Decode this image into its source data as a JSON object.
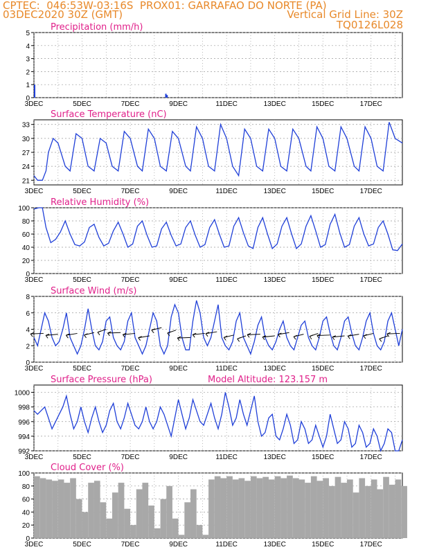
{
  "header": {
    "line1": "CPTEC:  046:53W-03:16S  PROX01: GARRAFAO DO NORTE (PA)",
    "line2_left": "03DEC2020 30Z (GMT)",
    "line2_right": "Vertical Grid Line: 30Z",
    "line3_right": "TQ0126L028"
  },
  "colors": {
    "title": "#e0208a",
    "header": "#e8892a",
    "line": "#1f3fd8",
    "bar": "#a8a8a8"
  },
  "x_axis": {
    "labels": [
      "3DEC",
      "5DEC",
      "7DEC",
      "9DEC",
      "11DEC",
      "13DEC",
      "15DEC",
      "17DEC"
    ],
    "day_range": [
      0,
      15.3
    ]
  },
  "chart_data": [
    {
      "type": "bar",
      "title": "Precipitation (mm/h)",
      "ylim": [
        0,
        5
      ],
      "yticks": [
        0,
        1,
        2,
        3,
        4,
        5
      ],
      "x_days": [
        0.0,
        5.45,
        5.5
      ],
      "values": [
        1.0,
        0.3,
        0.2
      ]
    },
    {
      "type": "line",
      "title": "Surface Temperature (nC)",
      "ylim": [
        20,
        34
      ],
      "yticks": [
        21,
        24,
        27,
        30,
        33
      ],
      "x_days": [
        0,
        0.15,
        0.35,
        0.5,
        0.6,
        0.8,
        1.0,
        1.3,
        1.5,
        1.75,
        2.0,
        2.25,
        2.5,
        2.75,
        3.0,
        3.25,
        3.5,
        3.75,
        4.0,
        4.3,
        4.5,
        4.75,
        5.0,
        5.25,
        5.5,
        5.75,
        6.0,
        6.3,
        6.5,
        6.75,
        7.0,
        7.25,
        7.5,
        7.75,
        8.0,
        8.25,
        8.5,
        8.75,
        9.0,
        9.25,
        9.5,
        9.75,
        10.0,
        10.25,
        10.5,
        10.75,
        11.0,
        11.3,
        11.5,
        11.75,
        12.0,
        12.25,
        12.5,
        12.75,
        13.0,
        13.3,
        13.5,
        13.75,
        14.0,
        14.25,
        14.5,
        14.75,
        15.0,
        15.3
      ],
      "values": [
        22,
        21,
        21,
        23,
        27,
        30,
        29,
        24,
        23,
        31,
        30,
        24,
        23,
        30,
        29,
        24,
        23,
        31.5,
        30,
        24,
        23,
        32,
        30,
        24,
        23,
        31.5,
        30,
        24,
        23,
        32.5,
        30,
        24,
        23,
        33,
        30,
        24,
        22,
        32,
        30,
        24,
        23,
        32,
        30,
        24,
        23,
        32,
        30,
        24,
        23,
        32.5,
        30,
        24,
        23,
        32.5,
        30,
        24,
        23,
        32.5,
        30,
        24,
        23,
        33.5,
        30,
        29
      ]
    },
    {
      "type": "line",
      "title": "Relative Humidity (%)",
      "ylim": [
        0,
        100
      ],
      "yticks": [
        0,
        20,
        40,
        60,
        80,
        100
      ],
      "x_days": [
        0,
        0.2,
        0.35,
        0.5,
        0.7,
        0.9,
        1.1,
        1.3,
        1.5,
        1.7,
        1.9,
        2.1,
        2.3,
        2.5,
        2.7,
        2.9,
        3.1,
        3.3,
        3.5,
        3.7,
        3.9,
        4.1,
        4.3,
        4.5,
        4.7,
        4.9,
        5.1,
        5.3,
        5.5,
        5.7,
        5.9,
        6.1,
        6.3,
        6.5,
        6.7,
        6.9,
        7.1,
        7.3,
        7.5,
        7.7,
        7.9,
        8.1,
        8.3,
        8.5,
        8.7,
        8.9,
        9.1,
        9.3,
        9.5,
        9.7,
        9.9,
        10.1,
        10.3,
        10.5,
        10.7,
        10.9,
        11.1,
        11.3,
        11.5,
        11.7,
        11.9,
        12.1,
        12.3,
        12.5,
        12.7,
        12.9,
        13.1,
        13.3,
        13.5,
        13.7,
        13.9,
        14.1,
        14.3,
        14.5,
        14.7,
        14.9,
        15.1,
        15.3
      ],
      "values": [
        98,
        100,
        100,
        70,
        47,
        52,
        63,
        80,
        60,
        44,
        42,
        48,
        70,
        75,
        55,
        42,
        46,
        65,
        78,
        60,
        40,
        45,
        72,
        80,
        58,
        40,
        42,
        68,
        78,
        58,
        42,
        45,
        70,
        80,
        58,
        40,
        44,
        70,
        82,
        60,
        40,
        42,
        72,
        85,
        62,
        42,
        38,
        70,
        85,
        60,
        38,
        45,
        72,
        85,
        60,
        38,
        45,
        72,
        88,
        65,
        40,
        44,
        75,
        90,
        62,
        40,
        44,
        72,
        85,
        60,
        42,
        45,
        70,
        80,
        60,
        36,
        35,
        45
      ]
    },
    {
      "type": "line",
      "title": "Surface Wind (m/s)",
      "ylim": [
        0,
        8
      ],
      "yticks": [
        0,
        2,
        4,
        6,
        8
      ],
      "x_days": [
        0,
        0.15,
        0.3,
        0.45,
        0.6,
        0.75,
        0.9,
        1.05,
        1.2,
        1.35,
        1.5,
        1.65,
        1.8,
        1.95,
        2.1,
        2.25,
        2.4,
        2.55,
        2.7,
        2.85,
        3.0,
        3.15,
        3.3,
        3.45,
        3.6,
        3.75,
        3.9,
        4.05,
        4.2,
        4.35,
        4.5,
        4.65,
        4.8,
        4.95,
        5.1,
        5.25,
        5.4,
        5.55,
        5.7,
        5.85,
        6.0,
        6.15,
        6.3,
        6.45,
        6.6,
        6.75,
        6.9,
        7.05,
        7.2,
        7.35,
        7.5,
        7.65,
        7.8,
        7.95,
        8.1,
        8.25,
        8.4,
        8.55,
        8.7,
        8.85,
        9.0,
        9.15,
        9.3,
        9.45,
        9.6,
        9.75,
        9.9,
        10.05,
        10.2,
        10.35,
        10.5,
        10.65,
        10.8,
        10.95,
        11.1,
        11.25,
        11.4,
        11.55,
        11.7,
        11.85,
        12.0,
        12.15,
        12.3,
        12.45,
        12.6,
        12.75,
        12.9,
        13.05,
        13.2,
        13.35,
        13.5,
        13.65,
        13.8,
        13.95,
        14.1,
        14.25,
        14.4,
        14.55,
        14.7,
        14.85,
        15.0,
        15.15,
        15.3
      ],
      "values": [
        3,
        2,
        4,
        6,
        5,
        3,
        2,
        2.5,
        4,
        6,
        3,
        2,
        1,
        2,
        4,
        6.5,
        4,
        2,
        1.5,
        2.5,
        5,
        5.5,
        3,
        2,
        1.5,
        2.5,
        5,
        6,
        3,
        2,
        1,
        2,
        4,
        6,
        5,
        2,
        1,
        2,
        5.5,
        7,
        6,
        3,
        1.5,
        1.5,
        5,
        7.5,
        6,
        3,
        2,
        3,
        5,
        7,
        3,
        2,
        1.5,
        2.5,
        5,
        6,
        3,
        2,
        1,
        2.5,
        4.5,
        5.5,
        3,
        2,
        1.5,
        2.5,
        4,
        5,
        3,
        2,
        1.5,
        3,
        4.5,
        5,
        3,
        2,
        1.5,
        3,
        5,
        5.5,
        3.5,
        2,
        1.5,
        3,
        5,
        5.5,
        3.5,
        2,
        1.5,
        3,
        5,
        6,
        3.5,
        2,
        1.5,
        2.5,
        5,
        6,
        4,
        2,
        4
      ],
      "arrows_x_days": [
        0.4,
        1.0,
        1.8,
        2.5,
        3.0,
        3.6,
        4.2,
        4.8,
        5.3,
        5.9,
        6.5,
        7.1,
        7.6,
        8.3,
        8.8,
        9.4,
        10.0,
        10.6,
        11.2,
        11.8,
        12.3,
        12.9,
        13.5,
        14.1,
        14.7,
        15.2
      ],
      "arrows_speed": [
        3.5,
        3.4,
        3.5,
        3.6,
        4.0,
        3.6,
        3.5,
        3.2,
        4.2,
        3.9,
        3.0,
        3.5,
        3.7,
        3.3,
        3.2,
        3.4,
        3.2,
        3.6,
        3.4,
        3.5,
        3.3,
        3.2,
        3.4,
        3.5,
        3.2,
        3.5
      ]
    },
    {
      "type": "line",
      "title": "Surface Pressure (hPa)",
      "annotation": "Model Altitude: 123.157 m",
      "ylim": [
        992,
        1001
      ],
      "yticks": [
        992,
        994,
        996,
        998,
        1000
      ],
      "x_days": [
        0,
        0.15,
        0.3,
        0.45,
        0.6,
        0.75,
        0.9,
        1.05,
        1.2,
        1.35,
        1.5,
        1.65,
        1.8,
        1.95,
        2.1,
        2.25,
        2.4,
        2.55,
        2.7,
        2.85,
        3.0,
        3.15,
        3.3,
        3.45,
        3.6,
        3.75,
        3.9,
        4.05,
        4.2,
        4.35,
        4.5,
        4.65,
        4.8,
        4.95,
        5.1,
        5.25,
        5.4,
        5.55,
        5.7,
        5.85,
        6.0,
        6.15,
        6.3,
        6.45,
        6.6,
        6.75,
        6.9,
        7.05,
        7.2,
        7.35,
        7.5,
        7.65,
        7.8,
        7.95,
        8.1,
        8.25,
        8.4,
        8.55,
        8.7,
        8.85,
        9.0,
        9.15,
        9.3,
        9.45,
        9.6,
        9.75,
        9.9,
        10.05,
        10.2,
        10.35,
        10.5,
        10.65,
        10.8,
        10.95,
        11.1,
        11.25,
        11.4,
        11.55,
        11.7,
        11.85,
        12.0,
        12.15,
        12.3,
        12.45,
        12.6,
        12.75,
        12.9,
        13.05,
        13.2,
        13.35,
        13.5,
        13.65,
        13.8,
        13.95,
        14.1,
        14.25,
        14.4,
        14.55,
        14.7,
        14.85,
        15.0,
        15.15,
        15.3
      ],
      "values": [
        997.5,
        997,
        997.5,
        998,
        996.5,
        995,
        996,
        997,
        998,
        999.5,
        997,
        995,
        996,
        998,
        996,
        994.5,
        996.5,
        998,
        996,
        994.5,
        995.5,
        997.5,
        998.5,
        996,
        995,
        996.5,
        998.5,
        997,
        995.5,
        995,
        996,
        998,
        996,
        995,
        996,
        998,
        997,
        995.5,
        994,
        996.5,
        999,
        997,
        995,
        996.5,
        999,
        997.5,
        996,
        995.5,
        997,
        998.5,
        996.5,
        995,
        997,
        1000,
        998,
        995.5,
        996.5,
        999,
        997,
        995.5,
        997.5,
        999.5,
        996,
        994,
        994.5,
        996.5,
        997,
        994,
        993.5,
        995,
        997,
        995.5,
        993,
        993.5,
        996,
        995,
        993,
        993.5,
        995.5,
        994,
        992.5,
        994,
        997,
        995,
        993,
        993.5,
        996,
        995,
        992.5,
        993,
        995.5,
        994.5,
        992.5,
        993,
        995,
        994,
        992,
        993,
        995,
        994.5,
        992,
        992,
        993.5
      ]
    },
    {
      "type": "bar",
      "title": "Cloud Cover (%)",
      "ylim": [
        0,
        100
      ],
      "yticks": [
        0,
        20,
        40,
        60,
        80,
        100
      ],
      "x_days": [
        0,
        0.25,
        0.5,
        0.75,
        1.0,
        1.25,
        1.5,
        1.75,
        2.0,
        2.25,
        2.5,
        2.75,
        3.0,
        3.25,
        3.5,
        3.75,
        4.0,
        4.25,
        4.5,
        4.75,
        5.0,
        5.25,
        5.5,
        5.75,
        6.0,
        6.25,
        6.5,
        6.75,
        7.0,
        7.25,
        7.5,
        7.75,
        8.0,
        8.25,
        8.5,
        8.75,
        9.0,
        9.25,
        9.5,
        9.75,
        10.0,
        10.25,
        10.5,
        10.75,
        11.0,
        11.25,
        11.5,
        11.75,
        12.0,
        12.25,
        12.5,
        12.75,
        13.0,
        13.25,
        13.5,
        13.75,
        14.0,
        14.25,
        14.5,
        14.75,
        15.0,
        15.25
      ],
      "values": [
        95,
        92,
        90,
        88,
        90,
        85,
        92,
        60,
        40,
        85,
        88,
        55,
        30,
        70,
        85,
        45,
        20,
        75,
        85,
        50,
        15,
        60,
        80,
        30,
        5,
        55,
        75,
        20,
        5,
        90,
        95,
        92,
        95,
        90,
        92,
        88,
        95,
        92,
        94,
        90,
        95,
        92,
        96,
        92,
        90,
        85,
        95,
        88,
        92,
        80,
        94,
        85,
        90,
        70,
        92,
        80,
        90,
        75,
        94,
        82,
        90,
        80
      ]
    }
  ]
}
